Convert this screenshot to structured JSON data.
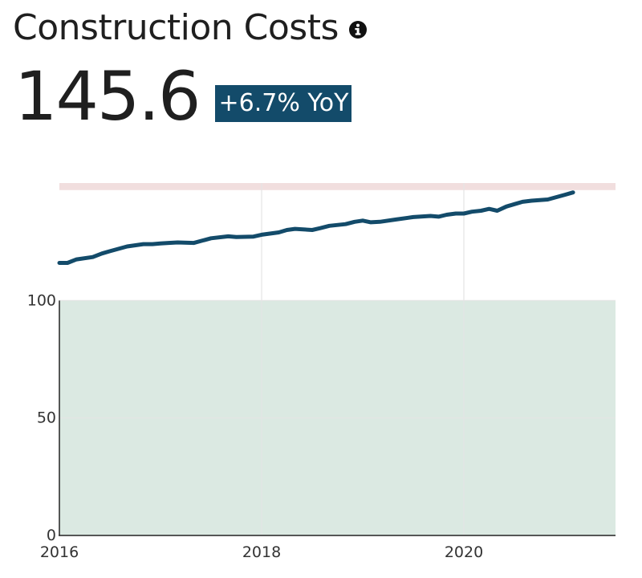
{
  "header": {
    "title": "Construction Costs",
    "info_icon": "info-circle-icon",
    "value": "145.6",
    "change_badge": "+6.7% YoY"
  },
  "colors": {
    "line": "#134b6a",
    "badge": "#134b6a",
    "green_band": "#dbe9e2",
    "red_band": "#f1dede",
    "grid": "#e4e4e4",
    "axis": "#222222"
  },
  "chart_data": {
    "type": "line",
    "title": "",
    "xlabel": "",
    "ylabel": "",
    "xlim": [
      2016,
      2021.5
    ],
    "ylim": [
      0,
      150
    ],
    "x_ticks": [
      2016,
      2018,
      2020
    ],
    "x_tick_labels": [
      "2016",
      "2018",
      "2020"
    ],
    "y_ticks": [
      0,
      50,
      100
    ],
    "y_tick_labels": [
      "0",
      "50",
      "100"
    ],
    "grid": true,
    "legend": "none",
    "bands": [
      {
        "y_from": 0,
        "y_to": 100,
        "color": "#dbe9e2"
      },
      {
        "y_from": 147,
        "y_to": 150,
        "color": "#f1dede"
      }
    ],
    "series": [
      {
        "x": [
          2016.0,
          2016.08,
          2016.17,
          2016.33,
          2016.42,
          2016.5,
          2016.67,
          2016.83,
          2016.92,
          2017.0,
          2017.08,
          2017.17,
          2017.33,
          2017.5,
          2017.67,
          2017.75,
          2017.92,
          2018.0,
          2018.17,
          2018.25,
          2018.33,
          2018.5,
          2018.58,
          2018.67,
          2018.83,
          2018.92,
          2019.0,
          2019.08,
          2019.17,
          2019.33,
          2019.5,
          2019.67,
          2019.75,
          2019.83,
          2019.92,
          2020.0,
          2020.08,
          2020.17,
          2020.25,
          2020.33,
          2020.42,
          2020.5,
          2020.58,
          2020.67,
          2020.83,
          2021.0,
          2021.08
        ],
        "values": [
          116.0,
          116.0,
          117.5,
          118.5,
          120.0,
          121.0,
          123.0,
          124.0,
          124.0,
          124.3,
          124.5,
          124.7,
          124.5,
          126.5,
          127.3,
          127.0,
          127.2,
          128.0,
          129.0,
          130.0,
          130.5,
          130.0,
          130.8,
          131.8,
          132.5,
          133.5,
          134.0,
          133.3,
          133.5,
          134.5,
          135.5,
          136.0,
          135.7,
          136.5,
          137.0,
          137.0,
          137.8,
          138.2,
          139.0,
          138.2,
          140.0,
          141.0,
          142.0,
          142.5,
          143.0,
          145.0,
          146.0
        ]
      }
    ]
  }
}
